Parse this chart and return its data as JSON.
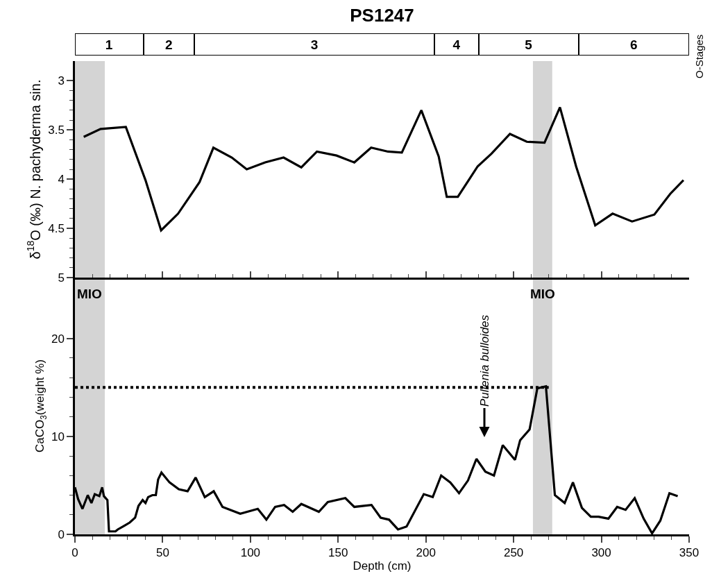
{
  "chart_data": [
    {
      "type": "bar",
      "title": "PS1247",
      "orientation": "horizontal",
      "stacked": true,
      "tick_labels": false,
      "categories": [
        null
      ],
      "xlim": [
        0,
        350
      ],
      "annotations": [
        "O-Stages"
      ],
      "series": [
        {
          "name": "1",
          "color": "#ffffff",
          "values": [
            39
          ]
        },
        {
          "name": "2",
          "color": "#ffffff",
          "values": [
            29
          ]
        },
        {
          "name": "3",
          "color": "#ffffff",
          "values": [
            137
          ]
        },
        {
          "name": "4",
          "color": "#ffffff",
          "values": [
            25
          ]
        },
        {
          "name": "5",
          "color": "#ffffff",
          "values": [
            57
          ]
        },
        {
          "name": "6",
          "color": "#ffffff",
          "values": [
            63
          ]
        }
      ]
    },
    {
      "type": "line",
      "ylabel": "δ$^{18}$O (‰) N. pachyderma sin.",
      "tick_labels": "y",
      "x": [
        5.0,
        14.6,
        29.0,
        40.2,
        49.1,
        58.8,
        71.0,
        78.9,
        89.4,
        97.9,
        108.4,
        118.9,
        129.0,
        137.9,
        149.1,
        159.2,
        168.8,
        178.4,
        186.3,
        197.4,
        207.3,
        211.9,
        218.2,
        229.5,
        237.4,
        247.9,
        257.5,
        267.6,
        276.4,
        285.6,
        296.5,
        306.4,
        317.5,
        330.2,
        339.2,
        346.8
      ],
      "xlim": [
        0,
        350
      ],
      "xticks": [
        0,
        {
          "value": 10,
          "label": null
        },
        {
          "value": 20,
          "label": null
        },
        {
          "value": 30,
          "label": null
        },
        {
          "value": 40,
          "label": null
        },
        50,
        {
          "value": 60,
          "label": null
        },
        {
          "value": 70,
          "label": null
        },
        {
          "value": 80,
          "label": null
        },
        {
          "value": 90,
          "label": null
        },
        100,
        {
          "value": 110,
          "label": null
        },
        {
          "value": 120,
          "label": null
        },
        {
          "value": 130,
          "label": null
        },
        {
          "value": 140,
          "label": null
        },
        150,
        {
          "value": 160,
          "label": null
        },
        {
          "value": 170,
          "label": null
        },
        {
          "value": 180,
          "label": null
        },
        {
          "value": 190,
          "label": null
        },
        200,
        {
          "value": 210,
          "label": null
        },
        {
          "value": 220,
          "label": null
        },
        {
          "value": 230,
          "label": null
        },
        {
          "value": 240,
          "label": null
        },
        250,
        {
          "value": 260,
          "label": null
        },
        {
          "value": 270,
          "label": null
        },
        {
          "value": 280,
          "label": null
        },
        {
          "value": 290,
          "label": null
        },
        300,
        {
          "value": 310,
          "label": null
        },
        {
          "value": 320,
          "label": null
        },
        {
          "value": 330,
          "label": null
        },
        {
          "value": 340,
          "label": null
        },
        350
      ],
      "ylim": [
        5,
        2.8
      ],
      "yticks": [
        3,
        {
          "value": 3.1,
          "label": null
        },
        {
          "value": 3.2,
          "label": null
        },
        {
          "value": 3.3,
          "label": null
        },
        {
          "value": 3.4,
          "label": null
        },
        3.5,
        {
          "value": 3.6,
          "label": null
        },
        {
          "value": 3.7,
          "label": null
        },
        {
          "value": 3.8,
          "label": null
        },
        {
          "value": 3.9,
          "label": null
        },
        4,
        {
          "value": 4.1,
          "label": null
        },
        {
          "value": 4.2,
          "label": null
        },
        {
          "value": 4.3,
          "label": null
        },
        {
          "value": 4.4,
          "label": null
        },
        4.5,
        {
          "value": 4.6,
          "label": null
        },
        {
          "value": 4.7,
          "label": null
        },
        {
          "value": 4.8,
          "label": null
        },
        {
          "value": 4.9,
          "label": null
        },
        5
      ],
      "bands": [
        {
          "axis": "x",
          "from": 0,
          "to": 17,
          "color": "#d4d4d4"
        },
        {
          "axis": "x",
          "from": 261,
          "to": 272,
          "color": "#d4d4d4"
        }
      ],
      "series": [
        {
          "color": "#000000",
          "values": [
            3.57,
            3.49,
            3.47,
            4.01,
            4.52,
            4.35,
            4.03,
            3.68,
            3.78,
            3.9,
            3.83,
            3.78,
            3.88,
            3.72,
            3.76,
            3.83,
            3.68,
            3.72,
            3.73,
            3.3,
            3.77,
            4.18,
            4.18,
            3.87,
            3.74,
            3.54,
            3.62,
            3.63,
            3.27,
            3.87,
            4.47,
            4.35,
            4.43,
            4.36,
            4.15,
            4.01
          ]
        }
      ]
    },
    {
      "type": "line",
      "xlabel": "Depth (cm)",
      "ylabel": "CaCO$_{3}$(weight %)",
      "xlim": [
        0,
        350
      ],
      "xticks": [
        0,
        {
          "value": 10,
          "label": null
        },
        {
          "value": 20,
          "label": null
        },
        {
          "value": 30,
          "label": null
        },
        {
          "value": 40,
          "label": null
        },
        50,
        {
          "value": 60,
          "label": null
        },
        {
          "value": 70,
          "label": null
        },
        {
          "value": 80,
          "label": null
        },
        {
          "value": 90,
          "label": null
        },
        100,
        {
          "value": 110,
          "label": null
        },
        {
          "value": 120,
          "label": null
        },
        {
          "value": 130,
          "label": null
        },
        {
          "value": 140,
          "label": null
        },
        150,
        {
          "value": 160,
          "label": null
        },
        {
          "value": 170,
          "label": null
        },
        {
          "value": 180,
          "label": null
        },
        {
          "value": 190,
          "label": null
        },
        200,
        {
          "value": 210,
          "label": null
        },
        {
          "value": 220,
          "label": null
        },
        {
          "value": 230,
          "label": null
        },
        {
          "value": 240,
          "label": null
        },
        250,
        {
          "value": 260,
          "label": null
        },
        {
          "value": 270,
          "label": null
        },
        {
          "value": 280,
          "label": null
        },
        {
          "value": 290,
          "label": null
        },
        300,
        {
          "value": 310,
          "label": null
        },
        {
          "value": 320,
          "label": null
        },
        {
          "value": 330,
          "label": null
        },
        {
          "value": 340,
          "label": null
        },
        350
      ],
      "ylim": [
        0,
        26.2
      ],
      "yticks": [
        0,
        {
          "value": 2,
          "label": null
        },
        {
          "value": 4,
          "label": null
        },
        {
          "value": 6,
          "label": null
        },
        {
          "value": 8,
          "label": null
        },
        10,
        {
          "value": 12,
          "label": null
        },
        {
          "value": 14,
          "label": null
        },
        {
          "value": 16,
          "label": null
        },
        {
          "value": 18,
          "label": null
        },
        20
      ],
      "bands": [
        {
          "axis": "x",
          "from": 0,
          "to": 17,
          "label": "MIO",
          "color": "#d4d4d4"
        },
        {
          "axis": "x",
          "from": 261,
          "to": 272,
          "label": "MIO",
          "color": "#d4d4d4"
        }
      ],
      "annotations": [
        "Pullenia bulloides"
      ],
      "series": [
        {
          "color": "#000000",
          "x": [
            0,
            1.8,
            4.3,
            7.3,
            9.4,
            11.3,
            13.9,
            15.5,
            16.5,
            18.5,
            19.4,
            23.1,
            24.4,
            28.3,
            31.2,
            34.3,
            36.2,
            38.6,
            40.2,
            41.7,
            44.1,
            46.1,
            47.4,
            49.3,
            53.9,
            59.2,
            64.2,
            68.8,
            74.0,
            79.1,
            84.1,
            94.2,
            104.2,
            109.1,
            114.1,
            119.2,
            124.1,
            129.0,
            139.0,
            144.1,
            154.1,
            159.2,
            169.0,
            174.2,
            179.0,
            184.1,
            189.0,
            198.8,
            203.9,
            208.7,
            213.9,
            218.9,
            224.0,
            228.8,
            233.9,
            238.8,
            243.8,
            250.8,
            253.7,
            259.1,
            263.5,
            268.4,
            273.5,
            279.1,
            283.8,
            288.9,
            294.0,
            298.4,
            304.0,
            309.0,
            313.8,
            319.0,
            324.1,
            328.9,
            333.6,
            338.8,
            343.5
          ],
          "values": [
            4.8,
            3.6,
            2.6,
            4.0,
            3.2,
            4.1,
            3.9,
            4.8,
            3.9,
            3.5,
            0.3,
            0.3,
            0.5,
            0.9,
            1.2,
            1.7,
            2.9,
            3.5,
            3.2,
            3.8,
            4.0,
            4.0,
            5.6,
            6.3,
            5.3,
            4.6,
            4.4,
            5.8,
            3.8,
            4.4,
            2.8,
            2.1,
            2.6,
            1.5,
            2.8,
            3.0,
            2.3,
            3.1,
            2.3,
            3.3,
            3.7,
            2.8,
            3.0,
            1.7,
            1.5,
            0.5,
            0.8,
            4.1,
            3.8,
            6.0,
            5.3,
            4.2,
            5.5,
            7.7,
            6.4,
            6.0,
            9.1,
            7.6,
            9.6,
            10.7,
            14.9,
            15.1,
            4.0,
            3.2,
            5.3,
            2.7,
            1.8,
            1.8,
            1.6,
            2.8,
            2.5,
            3.7,
            1.6,
            0.1,
            1.4,
            4.2,
            3.9
          ]
        },
        {
          "type": "line",
          "color": "#000000",
          "x": [
            0,
            270
          ],
          "values": [
            15,
            15
          ],
          "line_style": "dotted"
        }
      ]
    }
  ]
}
